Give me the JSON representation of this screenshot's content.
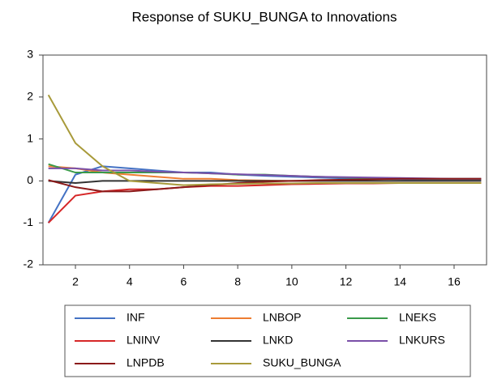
{
  "chart_data": {
    "type": "line",
    "title": "Response of SUKU_BUNGA to Innovations",
    "x": [
      1,
      2,
      3,
      4,
      5,
      6,
      7,
      8,
      9,
      10,
      11,
      12,
      13,
      14,
      15,
      16,
      17
    ],
    "xlim": [
      0.8,
      17.2
    ],
    "xticks": [
      2,
      4,
      6,
      8,
      10,
      12,
      14,
      16
    ],
    "ylim": [
      -2,
      3
    ],
    "yticks": [
      -2,
      -1,
      0,
      1,
      2,
      3
    ],
    "series": [
      {
        "name": "INF",
        "color": "#4472c4",
        "values": [
          -1,
          0.15,
          0.35,
          0.3,
          0.25,
          0.2,
          0.2,
          0.15,
          0.12,
          0.1,
          0.08,
          0.06,
          0.05,
          0.04,
          0.03,
          0.02,
          0.02
        ]
      },
      {
        "name": "LNBOP",
        "color": "#ed7d31",
        "values": [
          0.35,
          0.3,
          0.2,
          0.15,
          0.1,
          0.05,
          0.05,
          0.02,
          0.01,
          0,
          0,
          0,
          0,
          0,
          0,
          0,
          0
        ]
      },
      {
        "name": "LNEKS",
        "color": "#3a9a4a",
        "values": [
          0.4,
          0.2,
          0.2,
          0.2,
          0.2,
          0.2,
          0.18,
          0.15,
          0.15,
          0.12,
          0.1,
          0.08,
          0.07,
          0.06,
          0.05,
          0.05,
          0.05
        ]
      },
      {
        "name": "LNINV",
        "color": "#d62728",
        "values": [
          -1,
          -0.35,
          -0.25,
          -0.2,
          -0.2,
          -0.15,
          -0.12,
          -0.12,
          -0.1,
          -0.08,
          -0.07,
          -0.06,
          -0.06,
          -0.05,
          -0.05,
          -0.05,
          -0.05
        ]
      },
      {
        "name": "LNKD",
        "color": "#333333",
        "values": [
          0,
          -0.05,
          0,
          0,
          0,
          0,
          0,
          0,
          0,
          0,
          0,
          0,
          0,
          0,
          0,
          0,
          0
        ]
      },
      {
        "name": "LNKURS",
        "color": "#7a4fa8",
        "values": [
          0.3,
          0.3,
          0.25,
          0.25,
          0.22,
          0.2,
          0.18,
          0.16,
          0.14,
          0.12,
          0.1,
          0.09,
          0.08,
          0.07,
          0.06,
          0.05,
          0.05
        ]
      },
      {
        "name": "LNPDB",
        "color": "#8b1a1a",
        "values": [
          0.02,
          -0.15,
          -0.25,
          -0.25,
          -0.2,
          -0.15,
          -0.1,
          -0.05,
          -0.02,
          0,
          0.02,
          0.03,
          0.04,
          0.05,
          0.05,
          0.05,
          0.05
        ]
      },
      {
        "name": "SUKU_BUNGA",
        "color": "#a89a3a",
        "values": [
          2.05,
          0.9,
          0.35,
          0,
          -0.05,
          -0.1,
          -0.08,
          -0.07,
          -0.06,
          -0.06,
          -0.05,
          -0.05,
          -0.05,
          -0.05,
          -0.05,
          -0.05,
          -0.05
        ]
      }
    ]
  }
}
